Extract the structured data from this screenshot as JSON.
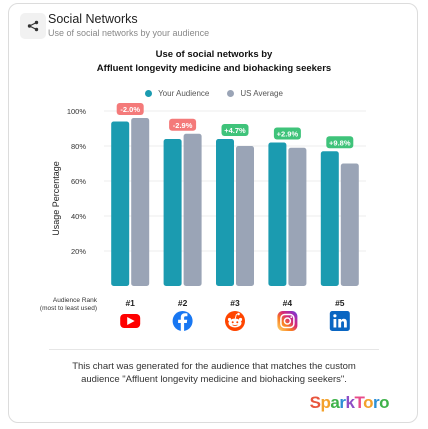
{
  "header": {
    "title": "Social Networks",
    "subtitle": "Use of social networks by your audience"
  },
  "chart_data": {
    "type": "bar",
    "title_line1": "Use of social networks by",
    "title_line2": "Affluent longevity medicine and biohacking seekers",
    "ylabel": "Usage Percentage",
    "ylim": [
      0,
      100
    ],
    "yticks": [
      "20%",
      "40%",
      "60%",
      "80%",
      "100%"
    ],
    "ytick_values": [
      20,
      40,
      60,
      80,
      100
    ],
    "categories": [
      "YouTube",
      "Facebook",
      "Reddit",
      "Instagram",
      "LinkedIn"
    ],
    "ranks": [
      "#1",
      "#2",
      "#3",
      "#4",
      "#5"
    ],
    "rank_label_line1": "Audience Rank",
    "rank_label_line2": "(most to least used)",
    "series": [
      {
        "name": "Your Audience",
        "color": "#1b9bb0",
        "values": [
          94,
          84,
          84,
          82,
          77
        ]
      },
      {
        "name": "US Average",
        "color": "#9aa4b6",
        "values": [
          96,
          87,
          80,
          79,
          70
        ]
      }
    ],
    "differences": [
      "-2.0%",
      "-2.9%",
      "+4.7%",
      "+2.9%",
      "+9.8%"
    ],
    "difference_colors": [
      "#f47a7a",
      "#f47a7a",
      "#3fc37a",
      "#3fc37a",
      "#3fc37a"
    ],
    "grid": true,
    "legend_position": "top-center"
  },
  "footnote": {
    "line1": "This chart was generated for the audience that matches the custom",
    "line2": "audience \"Affluent longevity medicine and biohacking seekers\"."
  },
  "logo": {
    "text": "SparkToro"
  },
  "icons": [
    "share-icon",
    "youtube-icon",
    "facebook-icon",
    "reddit-icon",
    "instagram-icon",
    "linkedin-icon"
  ]
}
